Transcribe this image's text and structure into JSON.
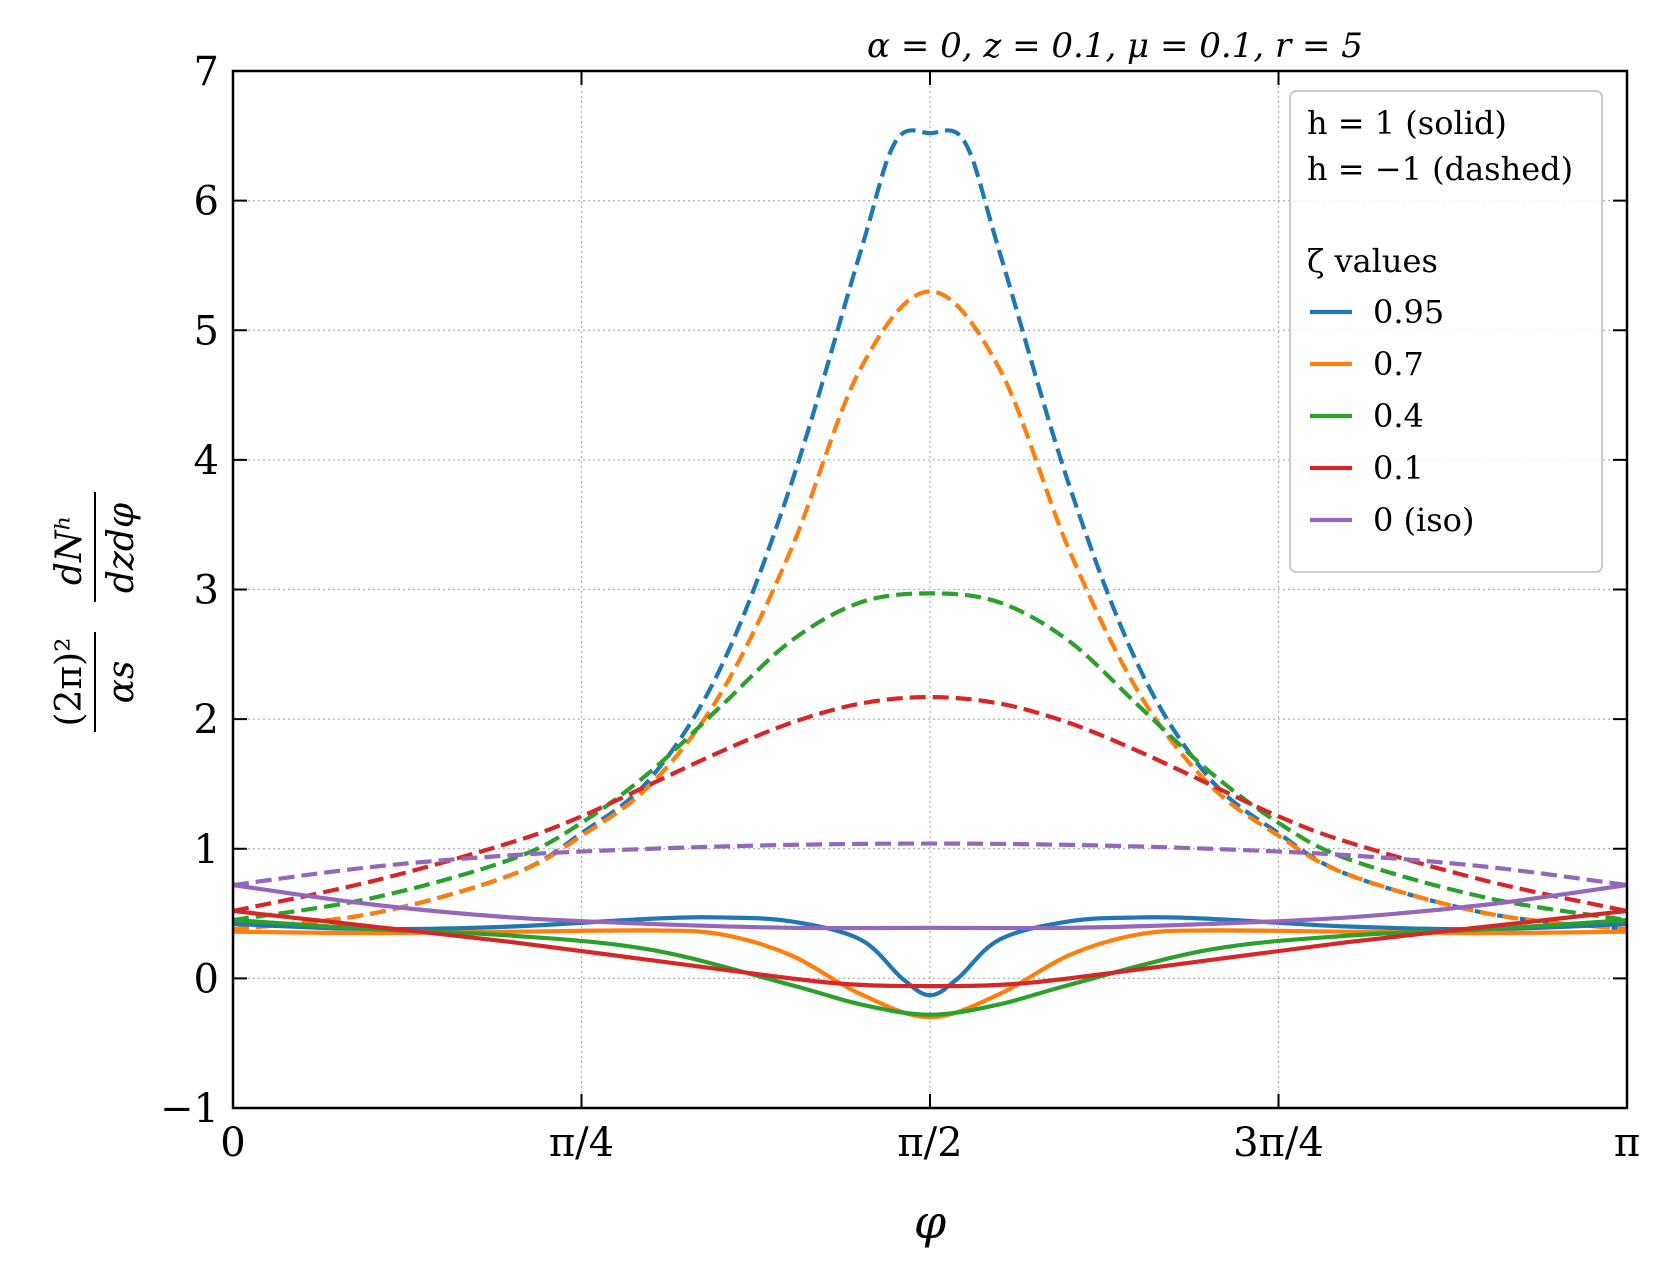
{
  "chart_data": {
    "type": "line",
    "title": "α = 0, z = 0.1, μ = 0.1, r = 5",
    "xlabel": "φ",
    "ylabel": {
      "prefix_num": "(2π)²",
      "prefix_den": "αs",
      "frac_num": "dNʰ",
      "frac_den": "dzdφ"
    },
    "xlim": [
      0,
      3.14159
    ],
    "ylim": [
      -1,
      7
    ],
    "xticks": [
      {
        "value": 0,
        "label": "0"
      },
      {
        "value": 0.785398,
        "label": "π/4"
      },
      {
        "value": 1.570796,
        "label": "π/2"
      },
      {
        "value": 2.356194,
        "label": "3π/4"
      },
      {
        "value": 3.141593,
        "label": "π"
      }
    ],
    "yticks": [
      {
        "value": -1,
        "label": "−1"
      },
      {
        "value": 0,
        "label": "0"
      },
      {
        "value": 1,
        "label": "1"
      },
      {
        "value": 2,
        "label": "2"
      },
      {
        "value": 3,
        "label": "3"
      },
      {
        "value": 4,
        "label": "4"
      },
      {
        "value": 5,
        "label": "5"
      },
      {
        "value": 6,
        "label": "6"
      },
      {
        "value": 7,
        "label": "7"
      }
    ],
    "grid": true,
    "legend": {
      "placement": "top-right",
      "line1": "h = 1 (solid)",
      "line2": "h = −1 (dashed)",
      "heading": "ζ values",
      "entries": [
        "0.95",
        "0.7",
        "0.4",
        "0.1",
        "0 (iso)"
      ]
    },
    "x_units": "fraction of π",
    "series": [
      {
        "name": "0.95",
        "color": "#1f77b4",
        "style": "dashed",
        "x": [
          0,
          0.1,
          0.2,
          0.25,
          0.3,
          0.35,
          0.4,
          0.45,
          0.475,
          0.5,
          0.525,
          0.55,
          0.6,
          0.65,
          0.7,
          0.75,
          0.8,
          0.9,
          1
        ],
        "y": [
          0.38,
          0.5,
          0.8,
          1.12,
          1.55,
          2.4,
          3.8,
          5.6,
          6.45,
          6.52,
          6.45,
          5.6,
          3.8,
          2.4,
          1.55,
          1.12,
          0.8,
          0.5,
          0.38
        ]
      },
      {
        "name": "0.95",
        "color": "#1f77b4",
        "style": "solid",
        "x": [
          0,
          0.1,
          0.2,
          0.3,
          0.35,
          0.4,
          0.45,
          0.48,
          0.5,
          0.52,
          0.55,
          0.6,
          0.65,
          0.7,
          0.8,
          0.9,
          1
        ],
        "y": [
          0.42,
          0.38,
          0.4,
          0.46,
          0.47,
          0.44,
          0.3,
          0.0,
          -0.13,
          0.0,
          0.3,
          0.44,
          0.47,
          0.46,
          0.4,
          0.38,
          0.42
        ]
      },
      {
        "name": "0.7",
        "color": "#ff7f0e",
        "style": "dashed",
        "x": [
          0,
          0.1,
          0.2,
          0.25,
          0.3,
          0.35,
          0.4,
          0.45,
          0.5,
          0.55,
          0.6,
          0.65,
          0.7,
          0.75,
          0.8,
          0.9,
          1
        ],
        "y": [
          0.38,
          0.5,
          0.8,
          1.1,
          1.5,
          2.2,
          3.3,
          4.7,
          5.3,
          4.7,
          3.3,
          2.2,
          1.5,
          1.1,
          0.8,
          0.5,
          0.38
        ]
      },
      {
        "name": "0.7",
        "color": "#ff7f0e",
        "style": "solid",
        "x": [
          0,
          0.1,
          0.2,
          0.3,
          0.35,
          0.4,
          0.45,
          0.5,
          0.55,
          0.6,
          0.65,
          0.7,
          0.8,
          0.9,
          1
        ],
        "y": [
          0.36,
          0.35,
          0.36,
          0.37,
          0.34,
          0.18,
          -0.12,
          -0.3,
          -0.12,
          0.18,
          0.34,
          0.37,
          0.36,
          0.35,
          0.36
        ]
      },
      {
        "name": "0.4",
        "color": "#2ca02c",
        "style": "dashed",
        "x": [
          0,
          0.1,
          0.2,
          0.25,
          0.3,
          0.35,
          0.4,
          0.45,
          0.5,
          0.55,
          0.6,
          0.65,
          0.7,
          0.75,
          0.8,
          0.9,
          1
        ],
        "y": [
          0.45,
          0.62,
          0.92,
          1.2,
          1.6,
          2.1,
          2.6,
          2.9,
          2.97,
          2.9,
          2.6,
          2.1,
          1.6,
          1.2,
          0.92,
          0.62,
          0.45
        ]
      },
      {
        "name": "0.4",
        "color": "#2ca02c",
        "style": "solid",
        "x": [
          0,
          0.1,
          0.2,
          0.3,
          0.4,
          0.45,
          0.5,
          0.55,
          0.6,
          0.7,
          0.8,
          0.9,
          1
        ],
        "y": [
          0.45,
          0.38,
          0.33,
          0.22,
          -0.05,
          -0.2,
          -0.28,
          -0.2,
          -0.05,
          0.22,
          0.33,
          0.38,
          0.45
        ]
      },
      {
        "name": "0.1",
        "color": "#d62728",
        "style": "dashed",
        "x": [
          0,
          0.1,
          0.2,
          0.25,
          0.3,
          0.35,
          0.4,
          0.45,
          0.5,
          0.55,
          0.6,
          0.65,
          0.7,
          0.75,
          0.8,
          0.9,
          1
        ],
        "y": [
          0.52,
          0.75,
          1.05,
          1.25,
          1.5,
          1.75,
          1.97,
          2.12,
          2.17,
          2.12,
          1.97,
          1.75,
          1.5,
          1.25,
          1.05,
          0.75,
          0.52
        ]
      },
      {
        "name": "0.1",
        "color": "#d62728",
        "style": "solid",
        "x": [
          0,
          0.1,
          0.2,
          0.3,
          0.4,
          0.45,
          0.5,
          0.55,
          0.6,
          0.7,
          0.8,
          0.9,
          1
        ],
        "y": [
          0.52,
          0.4,
          0.28,
          0.14,
          0.0,
          -0.05,
          -0.06,
          -0.05,
          0.0,
          0.14,
          0.28,
          0.4,
          0.52
        ]
      },
      {
        "name": "0 (iso)",
        "color": "#9467bd",
        "style": "dashed",
        "x": [
          0,
          0.1,
          0.2,
          0.3,
          0.4,
          0.5,
          0.6,
          0.7,
          0.8,
          0.9,
          1
        ],
        "y": [
          0.72,
          0.86,
          0.95,
          1.0,
          1.03,
          1.04,
          1.03,
          1.0,
          0.95,
          0.86,
          0.72
        ]
      },
      {
        "name": "0 (iso)",
        "color": "#9467bd",
        "style": "solid",
        "x": [
          0,
          0.1,
          0.2,
          0.3,
          0.4,
          0.5,
          0.6,
          0.7,
          0.8,
          0.9,
          1
        ],
        "y": [
          0.72,
          0.57,
          0.47,
          0.42,
          0.39,
          0.39,
          0.39,
          0.42,
          0.47,
          0.57,
          0.72
        ]
      }
    ]
  }
}
